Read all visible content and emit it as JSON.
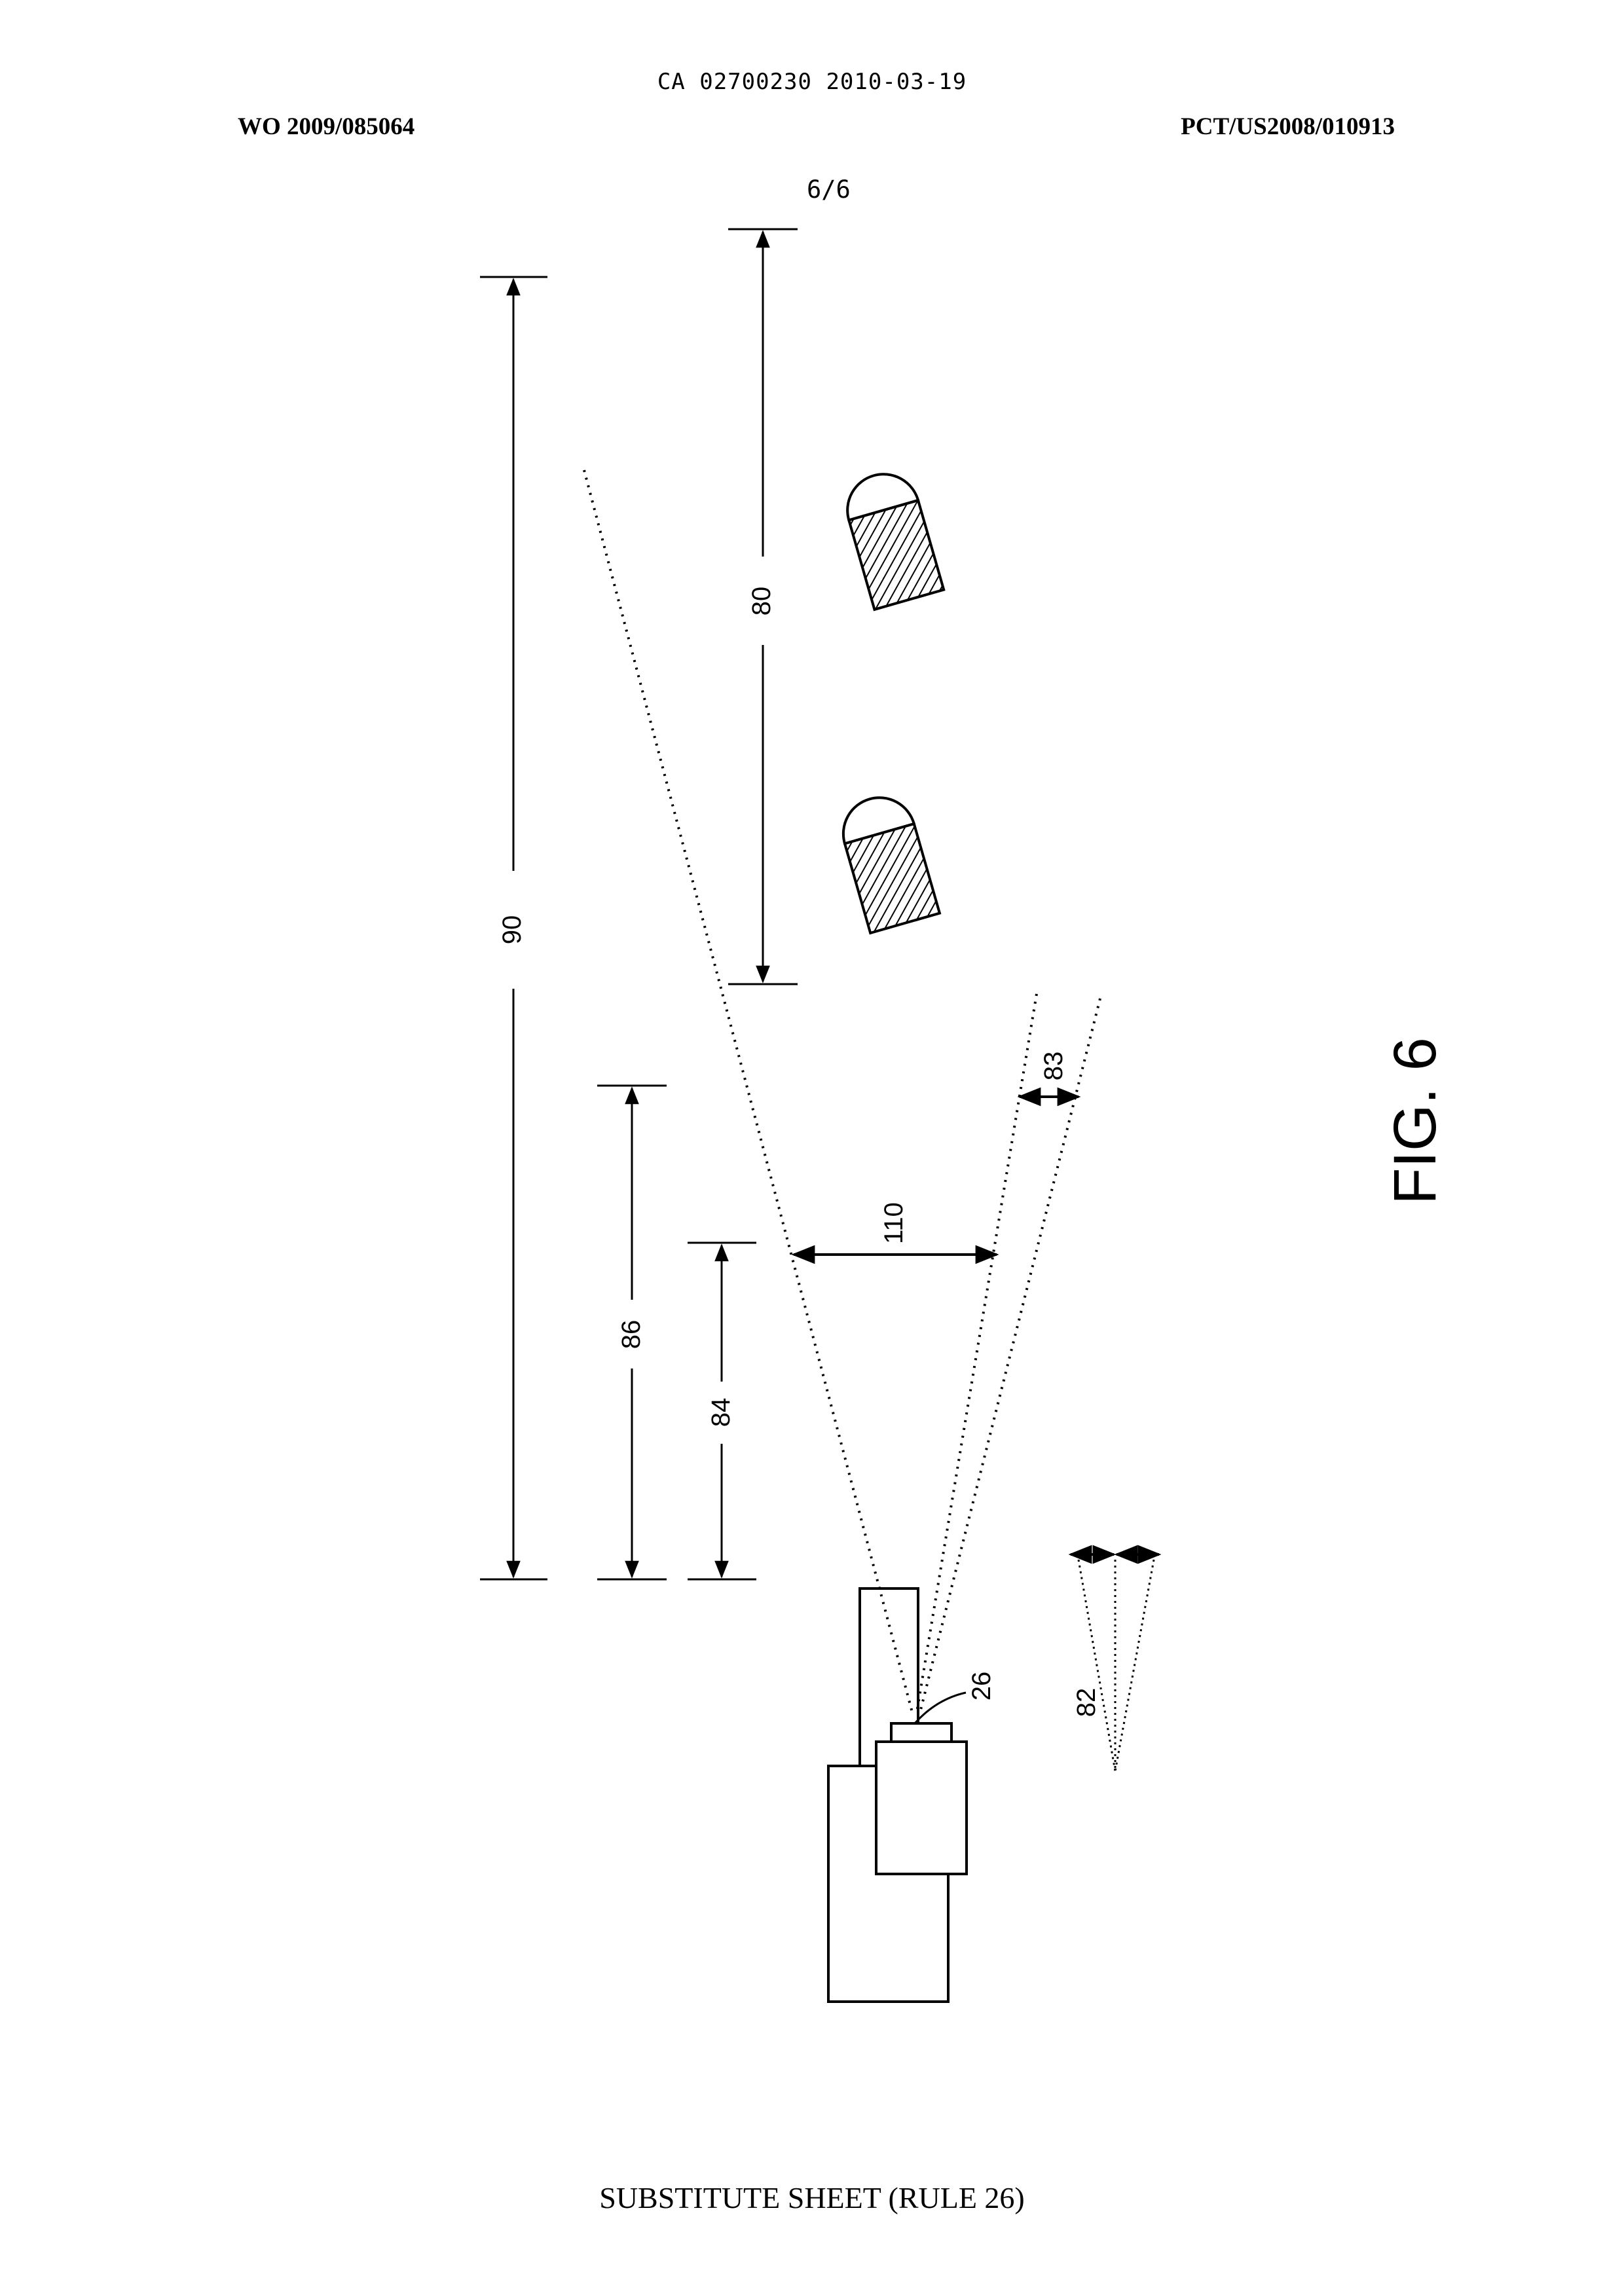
{
  "header": {
    "ca_line": "CA 02700230 2010-03-19",
    "wo_number": "WO 2009/085064",
    "pct_number": "PCT/US2008/010913",
    "sheet_number": "6/6"
  },
  "figure": {
    "title": "FIG. 6",
    "labels": {
      "l80": "80",
      "l90": "90",
      "l83": "83",
      "l110": "110",
      "l86": "86",
      "l84": "84",
      "l26": "26",
      "l82": "82"
    }
  },
  "footer": {
    "text": "SUBSTITUTE SHEET (RULE 26)"
  }
}
